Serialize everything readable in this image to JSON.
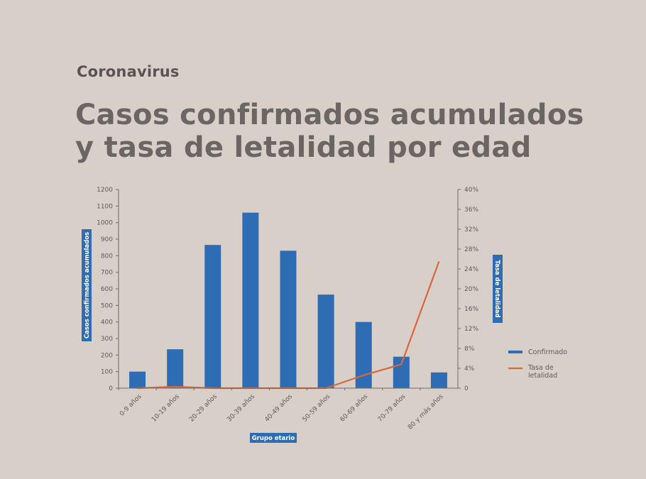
{
  "header": {
    "brand": "Coronavirus",
    "title_line1": "Casos confirmados acumulados",
    "title_line2": "y tasa de letalidad por edad"
  },
  "colors": {
    "bar": "#2e6db4",
    "line": "#d9663e",
    "axis_tag_bg": "#2e6db4",
    "background": "#d9cfc9"
  },
  "chart_data": {
    "type": "bar",
    "categories": [
      "0-9 años",
      "10-19 años",
      "20-29 años",
      "30-39 años",
      "40-49 años",
      "50-59 años",
      "60-69 años",
      "70-79 años",
      "80 y más años"
    ],
    "series": [
      {
        "name": "Confirmado",
        "type": "bar",
        "axis": "left",
        "values": [
          100,
          235,
          865,
          1060,
          830,
          565,
          400,
          190,
          95
        ]
      },
      {
        "name": "Tasa de letalidad",
        "type": "line",
        "axis": "right",
        "values": [
          0.0,
          0.3,
          0.0,
          0.0,
          0.0,
          0.0,
          2.6,
          4.8,
          25.5
        ]
      }
    ],
    "xlabel": "Grupo etario",
    "ylabel": "Casos confirmados acumulados",
    "y2label": "Tasa de letalidad",
    "ylim": [
      0,
      1200
    ],
    "yticks": [
      0,
      100,
      200,
      300,
      400,
      500,
      600,
      700,
      800,
      900,
      1000,
      1100,
      1200
    ],
    "y2lim": [
      0,
      40
    ],
    "y2ticks": [
      "0",
      "4%",
      "8%",
      "12%",
      "16%",
      "20%",
      "24%",
      "28%",
      "32%",
      "36%",
      "40%"
    ],
    "legend": {
      "placement": "right",
      "entries": [
        "Confirmado",
        "Tasa de letalidad"
      ]
    },
    "grid": false
  }
}
